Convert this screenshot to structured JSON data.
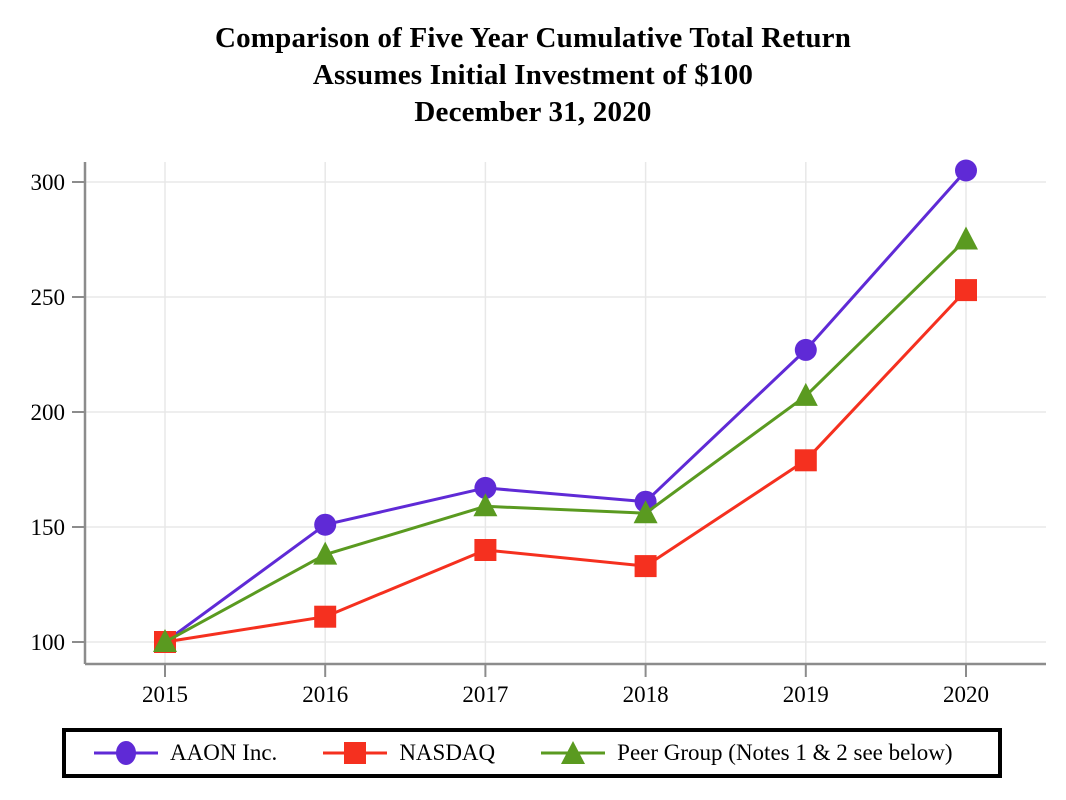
{
  "chart_data": {
    "type": "line",
    "title_lines": [
      "Comparison of Five Year Cumulative Total Return",
      "Assumes Initial Investment of $100",
      "December 31, 2020"
    ],
    "x_categories": [
      "2015",
      "2016",
      "2017",
      "2018",
      "2019",
      "2020"
    ],
    "y_ticks": [
      "100",
      "150",
      "200",
      "250",
      "300"
    ],
    "ylim": [
      95,
      312
    ],
    "grid": true,
    "legend_position": "bottom-boxed",
    "series": [
      {
        "name": "AAON Inc.",
        "marker": "circle",
        "color": "#5f2ad6",
        "values": [
          100,
          151,
          167,
          161,
          227,
          305
        ]
      },
      {
        "name": "NASDAQ",
        "marker": "square",
        "color": "#f5301f",
        "values": [
          100,
          111,
          140,
          133,
          179,
          253
        ]
      },
      {
        "name": "Peer Group (Notes 1 & 2 see below)",
        "marker": "triangle",
        "color": "#5a9a20",
        "values": [
          100,
          138,
          159,
          156,
          207,
          275
        ]
      }
    ],
    "axis_color": "#8c8c8c",
    "grid_color": "#e8e8e8",
    "text_color": "#000000"
  }
}
